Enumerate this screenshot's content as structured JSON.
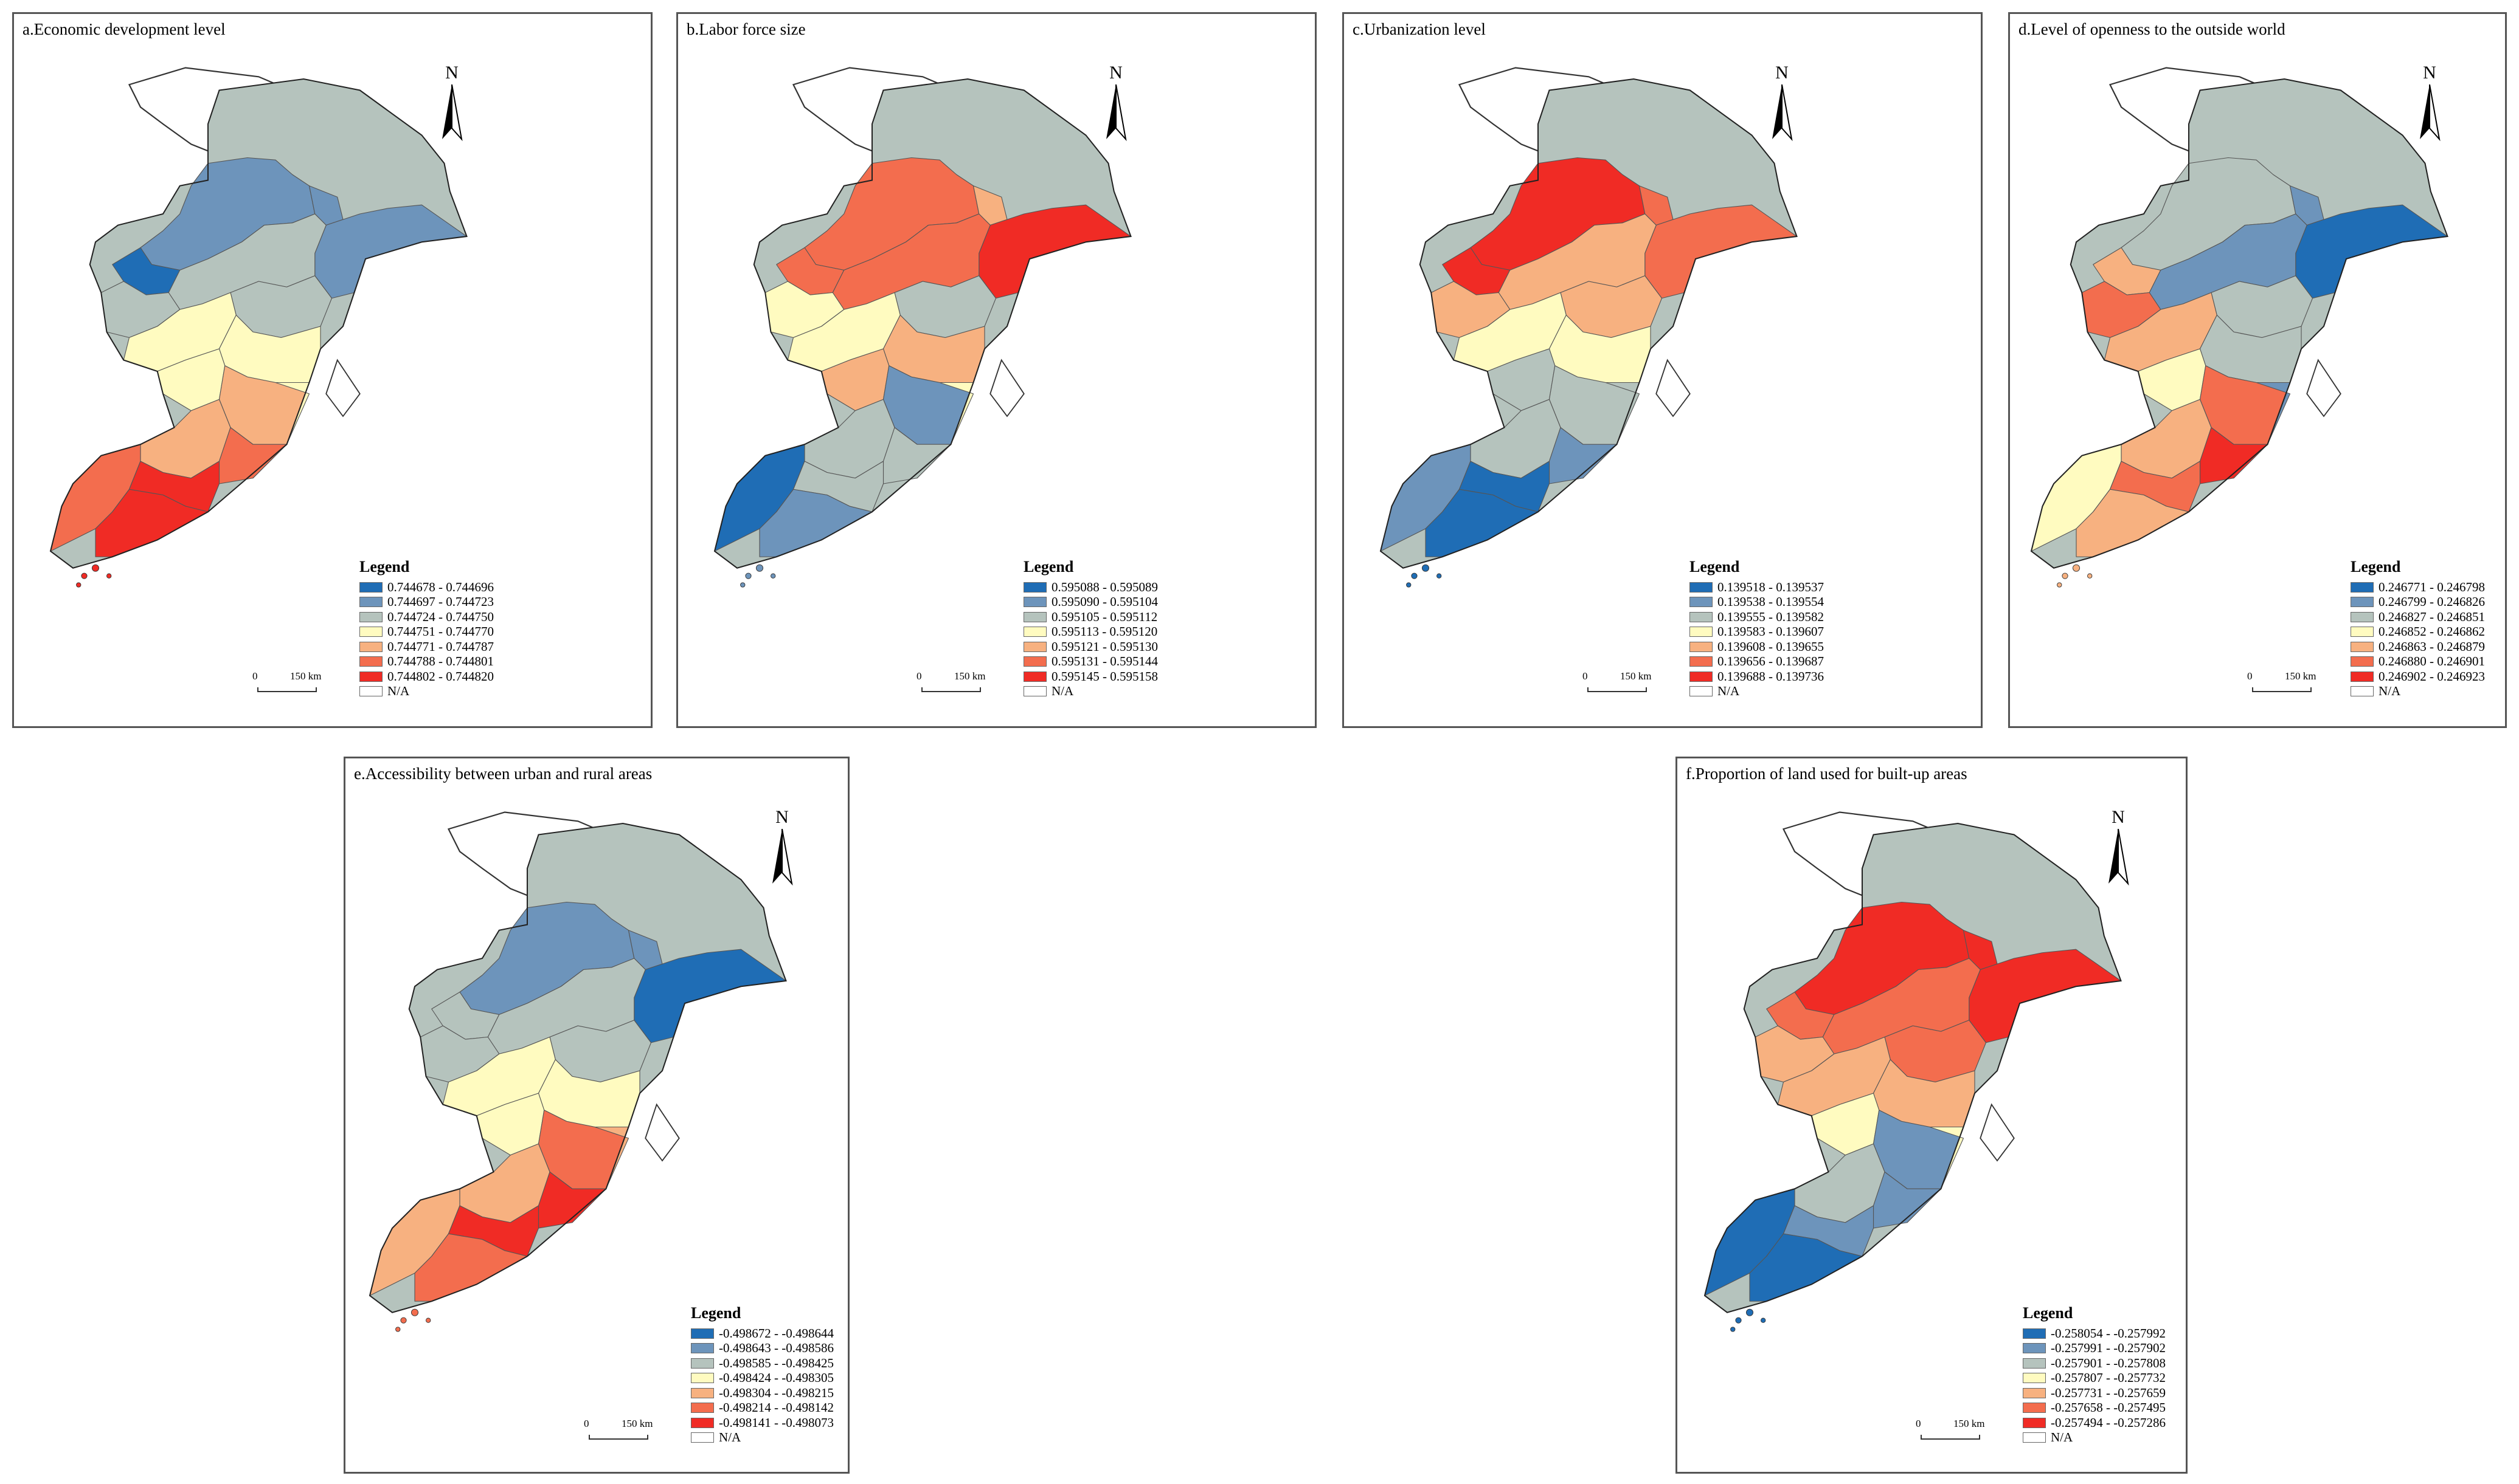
{
  "panels": [
    {
      "id": "a",
      "title": "a.Economic development level",
      "north_label": "N",
      "scale": {
        "zero": "0",
        "distance": "150 km"
      },
      "legend": {
        "title": "Legend",
        "classes": [
          {
            "range": "0.744678 - 0.744696",
            "color": "#1f6db5"
          },
          {
            "range": "0.744697 - 0.744723",
            "color": "#6d94bb"
          },
          {
            "range": "0.744724 - 0.744750",
            "color": "#b5c3bd"
          },
          {
            "range": "0.744751 - 0.744770",
            "color": "#fffbc0"
          },
          {
            "range": "0.744771 - 0.744787",
            "color": "#f7b180"
          },
          {
            "range": "0.744788 - 0.744801",
            "color": "#f36d4e"
          },
          {
            "range": "0.744802 - 0.744820",
            "color": "#f02b25"
          }
        ],
        "na_label": "N/A"
      },
      "region_classes": [
        1,
        0,
        1,
        1,
        2,
        2,
        2,
        3,
        3,
        3,
        4,
        4,
        5,
        5,
        6,
        6,
        3
      ]
    },
    {
      "id": "b",
      "title": "b.Labor force size",
      "north_label": "N",
      "scale": {
        "zero": "0",
        "distance": "150 km"
      },
      "legend": {
        "title": "Legend",
        "classes": [
          {
            "range": "0.595088 - 0.595089",
            "color": "#1f6db5"
          },
          {
            "range": "0.595090 - 0.595104",
            "color": "#6d94bb"
          },
          {
            "range": "0.595105 - 0.595112",
            "color": "#b5c3bd"
          },
          {
            "range": "0.595113 - 0.595120",
            "color": "#fffbc0"
          },
          {
            "range": "0.595121 - 0.595130",
            "color": "#f7b180"
          },
          {
            "range": "0.595131 - 0.595144",
            "color": "#f36d4e"
          },
          {
            "range": "0.595145 - 0.595158",
            "color": "#f02b25"
          }
        ],
        "na_label": "N/A"
      },
      "region_classes": [
        5,
        5,
        4,
        6,
        5,
        3,
        2,
        3,
        4,
        4,
        1,
        2,
        2,
        0,
        2,
        1,
        3
      ]
    },
    {
      "id": "c",
      "title": "c.Urbanization level",
      "north_label": "N",
      "scale": {
        "zero": "0",
        "distance": "150 km"
      },
      "legend": {
        "title": "Legend",
        "classes": [
          {
            "range": "0.139518 - 0.139537",
            "color": "#1f6db5"
          },
          {
            "range": "0.139538 - 0.139554",
            "color": "#6d94bb"
          },
          {
            "range": "0.139555 - 0.139582",
            "color": "#b5c3bd"
          },
          {
            "range": "0.139583 - 0.139607",
            "color": "#fffbc0"
          },
          {
            "range": "0.139608 - 0.139655",
            "color": "#f7b180"
          },
          {
            "range": "0.139656 - 0.139687",
            "color": "#f36d4e"
          },
          {
            "range": "0.139688 - 0.139736",
            "color": "#f02b25"
          }
        ],
        "na_label": "N/A"
      },
      "region_classes": [
        6,
        6,
        5,
        5,
        4,
        4,
        4,
        3,
        3,
        2,
        2,
        2,
        1,
        1,
        0,
        0,
        2
      ]
    },
    {
      "id": "d",
      "title": "d.Level of openness to the outside world",
      "north_label": "N",
      "scale": {
        "zero": "0",
        "distance": "150 km"
      },
      "legend": {
        "title": "Legend",
        "classes": [
          {
            "range": "0.246771 - 0.246798",
            "color": "#1f6db5"
          },
          {
            "range": "0.246799 - 0.246826",
            "color": "#6d94bb"
          },
          {
            "range": "0.246827 - 0.246851",
            "color": "#b5c3bd"
          },
          {
            "range": "0.246852 - 0.246862",
            "color": "#fffbc0"
          },
          {
            "range": "0.246863 - 0.246879",
            "color": "#f7b180"
          },
          {
            "range": "0.246880 - 0.246901",
            "color": "#f36d4e"
          },
          {
            "range": "0.246902 - 0.246923",
            "color": "#f02b25"
          }
        ],
        "na_label": "N/A"
      },
      "region_classes": [
        2,
        4,
        1,
        0,
        1,
        5,
        2,
        4,
        2,
        3,
        5,
        4,
        6,
        3,
        5,
        4,
        1
      ]
    },
    {
      "id": "e",
      "title": "e.Accessibility between urban and rural areas",
      "north_label": "N",
      "scale": {
        "zero": "0",
        "distance": "150 km"
      },
      "legend": {
        "title": "Legend",
        "classes": [
          {
            "range": "-0.498672 - -0.498644",
            "color": "#1f6db5"
          },
          {
            "range": "-0.498643 - -0.498586",
            "color": "#6d94bb"
          },
          {
            "range": "-0.498585 - -0.498425",
            "color": "#b5c3bd"
          },
          {
            "range": "-0.498424 - -0.498305",
            "color": "#fffbc0"
          },
          {
            "range": "-0.498304 - -0.498215",
            "color": "#f7b180"
          },
          {
            "range": "-0.498214 - -0.498142",
            "color": "#f36d4e"
          },
          {
            "range": "-0.498141 - -0.498073",
            "color": "#f02b25"
          }
        ],
        "na_label": "N/A"
      },
      "region_classes": [
        1,
        2,
        1,
        0,
        2,
        2,
        2,
        3,
        3,
        3,
        5,
        4,
        6,
        4,
        6,
        5,
        4
      ]
    },
    {
      "id": "f",
      "title": "f.Proportion of land used for built-up areas",
      "north_label": "N",
      "scale": {
        "zero": "0",
        "distance": "150 km"
      },
      "legend": {
        "title": "Legend",
        "classes": [
          {
            "range": "-0.258054 - -0.257992",
            "color": "#1f6db5"
          },
          {
            "range": "-0.257991 - -0.257902",
            "color": "#6d94bb"
          },
          {
            "range": "-0.257901 - -0.257808",
            "color": "#b5c3bd"
          },
          {
            "range": "-0.257807 - -0.257732",
            "color": "#fffbc0"
          },
          {
            "range": "-0.257731 - -0.257659",
            "color": "#f7b180"
          },
          {
            "range": "-0.257658 - -0.257495",
            "color": "#f36d4e"
          },
          {
            "range": "-0.257494 - -0.257286",
            "color": "#f02b25"
          }
        ],
        "na_label": "N/A"
      },
      "region_classes": [
        6,
        5,
        6,
        6,
        5,
        4,
        5,
        4,
        4,
        3,
        1,
        2,
        1,
        0,
        1,
        0,
        3
      ]
    }
  ]
}
